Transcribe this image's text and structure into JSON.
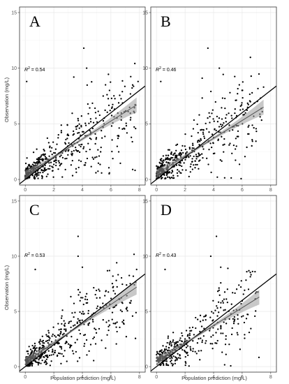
{
  "figure": {
    "y_axis_title": "Observation  (mg/L)",
    "x_axis_title": "Population prediction (mg/L)",
    "r2_prefix": "R",
    "r2_superscript": "2"
  },
  "chart_data": [
    {
      "type": "scatter",
      "panel": "A",
      "r2_text": "= 0.54",
      "xlim": [
        -0.4,
        8.4
      ],
      "ylim": [
        -0.5,
        15.5
      ],
      "x_ticks": [
        0,
        2,
        4,
        6,
        8
      ],
      "y_ticks": [
        0,
        5,
        10,
        15
      ],
      "grid": true,
      "identity_line": {
        "x": [
          -0.4,
          8.4
        ],
        "y": [
          -0.4,
          8.4
        ]
      },
      "fit_line": {
        "x": [
          0,
          7.8
        ],
        "y": [
          0.4,
          6.7
        ]
      },
      "seed": 11,
      "n_points": 480,
      "x_max": 7.8,
      "outliers": [
        [
          4.1,
          11.8
        ],
        [
          4.3,
          10.0
        ],
        [
          0.1,
          8.8
        ],
        [
          7.9,
          8.8
        ],
        [
          5.9,
          8.0
        ],
        [
          3.4,
          9.2
        ]
      ]
    },
    {
      "type": "scatter",
      "panel": "B",
      "r2_text": "= 0.46",
      "xlim": [
        -0.4,
        8.4
      ],
      "ylim": [
        -0.5,
        15.5
      ],
      "x_ticks": [
        0,
        2,
        4,
        6,
        8
      ],
      "y_ticks": [
        0,
        5,
        10,
        15
      ],
      "grid": true,
      "identity_line": {
        "x": [
          -0.4,
          8.4
        ],
        "y": [
          -0.4,
          8.4
        ]
      },
      "fit_line": {
        "x": [
          0,
          7.5
        ],
        "y": [
          0.5,
          6.5
        ]
      },
      "seed": 23,
      "n_points": 460,
      "x_max": 7.5,
      "outliers": [
        [
          3.6,
          11.8
        ],
        [
          4.4,
          10.0
        ],
        [
          0.3,
          8.8
        ],
        [
          7.5,
          8.3
        ],
        [
          5.8,
          8.5
        ],
        [
          3.2,
          9.1
        ]
      ]
    },
    {
      "type": "scatter",
      "panel": "C",
      "r2_text": "= 0.53",
      "xlim": [
        -0.4,
        8.4
      ],
      "ylim": [
        -0.5,
        15.5
      ],
      "x_ticks": [
        0,
        2,
        4,
        6,
        8
      ],
      "y_ticks": [
        0,
        5,
        10,
        15
      ],
      "grid": true,
      "identity_line": {
        "x": [
          -0.4,
          8.4
        ],
        "y": [
          -0.4,
          8.4
        ]
      },
      "fit_line": {
        "x": [
          0,
          7.8
        ],
        "y": [
          0.4,
          7.2
        ]
      },
      "seed": 37,
      "n_points": 480,
      "x_max": 7.8,
      "outliers": [
        [
          3.7,
          11.8
        ],
        [
          3.7,
          10.0
        ],
        [
          0.7,
          8.8
        ],
        [
          7.8,
          8.8
        ],
        [
          5.9,
          8.7
        ],
        [
          4.0,
          9.0
        ]
      ]
    },
    {
      "type": "scatter",
      "panel": "D",
      "r2_text": "= 0.43",
      "xlim": [
        -0.4,
        8.4
      ],
      "ylim": [
        -0.5,
        15.5
      ],
      "x_ticks": [
        0,
        2,
        4,
        6,
        8
      ],
      "y_ticks": [
        0,
        5,
        10,
        15
      ],
      "grid": true,
      "identity_line": {
        "x": [
          -0.4,
          8.4
        ],
        "y": [
          -0.4,
          8.4
        ]
      },
      "fit_line": {
        "x": [
          0,
          7.2
        ],
        "y": [
          0.5,
          6.3
        ]
      },
      "seed": 53,
      "n_points": 380,
      "x_max": 7.2,
      "outliers": [
        [
          4.2,
          11.8
        ],
        [
          3.8,
          10.0
        ],
        [
          0.6,
          8.8
        ],
        [
          4.5,
          9.0
        ],
        [
          5.0,
          8.9
        ],
        [
          6.9,
          8.6
        ]
      ]
    }
  ]
}
